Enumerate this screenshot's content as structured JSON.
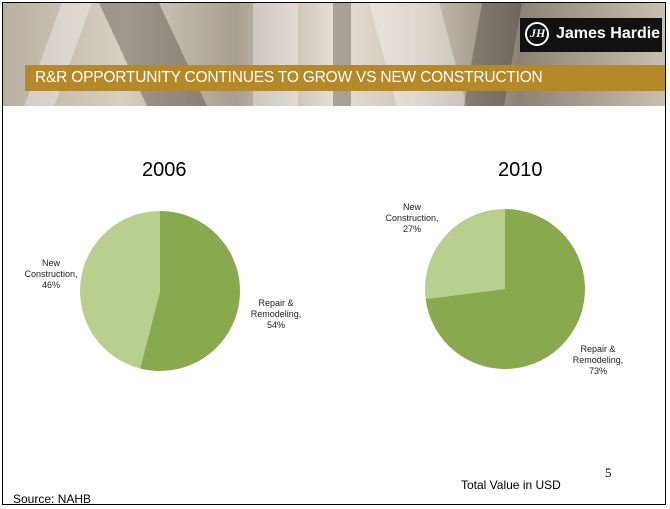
{
  "header": {
    "title": "R&R OPPORTUNITY CONTINUES TO GROW VS NEW CONSTRUCTION",
    "logo_text": "James Hardie",
    "logo_mark": "JH"
  },
  "colors": {
    "repair": "#88a94e",
    "new_construction": "#b8cf8f",
    "title_bar": "#b5892a"
  },
  "chart_data": [
    {
      "type": "pie",
      "title": "2006",
      "labels": [
        "Repair & Remodeling",
        "New Construction"
      ],
      "values": [
        54,
        46
      ],
      "unit": "%",
      "display_labels": [
        "Repair & Remodeling, 54%",
        "New Construction, 46%"
      ]
    },
    {
      "type": "pie",
      "title": "2010",
      "labels": [
        "Repair & Remodeling",
        "New Construction"
      ],
      "values": [
        73,
        27
      ],
      "unit": "%",
      "display_labels": [
        "Repair & Remodeling, 73%",
        "New Construction, 27%"
      ]
    }
  ],
  "footer": {
    "page_number": "5",
    "note": "Total Value in USD",
    "source": "Source: NAHB"
  }
}
